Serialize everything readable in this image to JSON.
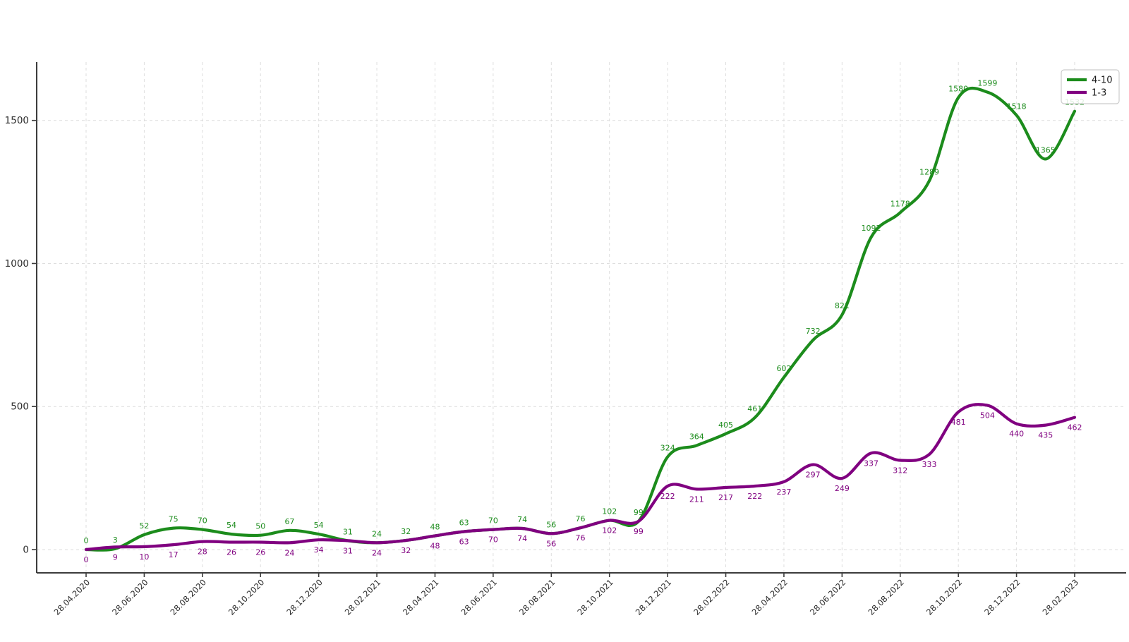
{
  "chart_data": {
    "type": "line",
    "title": "",
    "xlabel": "",
    "ylabel": "",
    "x": [
      "28.04.2020",
      "28.05.2020",
      "28.06.2020",
      "28.07.2020",
      "28.08.2020",
      "28.09.2020",
      "28.10.2020",
      "28.11.2020",
      "28.12.2020",
      "28.01.2021",
      "28.02.2021",
      "28.03.2021",
      "28.04.2021",
      "28.05.2021",
      "28.06.2021",
      "28.07.2021",
      "28.08.2021",
      "28.09.2021",
      "28.10.2021",
      "28.11.2021",
      "28.12.2021",
      "28.01.2022",
      "28.02.2022",
      "28.03.2022",
      "28.04.2022",
      "28.05.2022",
      "28.06.2022",
      "28.07.2022",
      "28.08.2022",
      "28.09.2022",
      "28.10.2022",
      "28.11.2022",
      "28.12.2022",
      "28.01.2023",
      "28.02.2023"
    ],
    "x_tick_labels": [
      "28.04.2020",
      "28.06.2020",
      "28.08.2020",
      "28.10.2020",
      "28.12.2020",
      "28.02.2021",
      "28.04.2021",
      "28.06.2021",
      "28.08.2021",
      "28.10.2021",
      "28.12.2021",
      "28.02.2022",
      "28.04.2022",
      "28.06.2022",
      "28.08.2022",
      "28.10.2022",
      "28.12.2022",
      "28.02.2023"
    ],
    "x_tick_every": 2,
    "series": [
      {
        "name": "4-10",
        "color": "#1c8c1c",
        "values": [
          0,
          3,
          52,
          75,
          70,
          54,
          50,
          67,
          54,
          31,
          24,
          32,
          48,
          63,
          70,
          74,
          56,
          76,
          102,
          99,
          324,
          364,
          405,
          461,
          602,
          732,
          821,
          1092,
          1178,
          1289,
          1580,
          1599,
          1518,
          1365,
          1532
        ],
        "label_side": "above"
      },
      {
        "name": "1-3",
        "color": "#800080",
        "values": [
          0,
          9,
          10,
          17,
          28,
          26,
          26,
          24,
          34,
          31,
          24,
          32,
          48,
          63,
          70,
          74,
          56,
          76,
          102,
          99,
          222,
          211,
          217,
          222,
          237,
          297,
          249,
          337,
          312,
          333,
          481,
          504,
          440,
          435,
          462
        ],
        "label_side": "below"
      }
    ],
    "yticks": [
      0,
      500,
      1000,
      1500
    ],
    "ylim": [
      -80,
      1705
    ],
    "grid": "dashed-both",
    "smoothing": "spline",
    "legend": {
      "position": "top-right",
      "entries": [
        {
          "label": "4-10",
          "color": "#1c8c1c"
        },
        {
          "label": "1-3",
          "color": "#800080"
        }
      ]
    }
  },
  "style_colors": {
    "grid": "#d9d9d9",
    "spine": "#3c3c3c",
    "tick_label": "#2b2b2b",
    "legend_border": "#cccccc",
    "legend_bg": "#ffffff",
    "background": "#ffffff"
  }
}
